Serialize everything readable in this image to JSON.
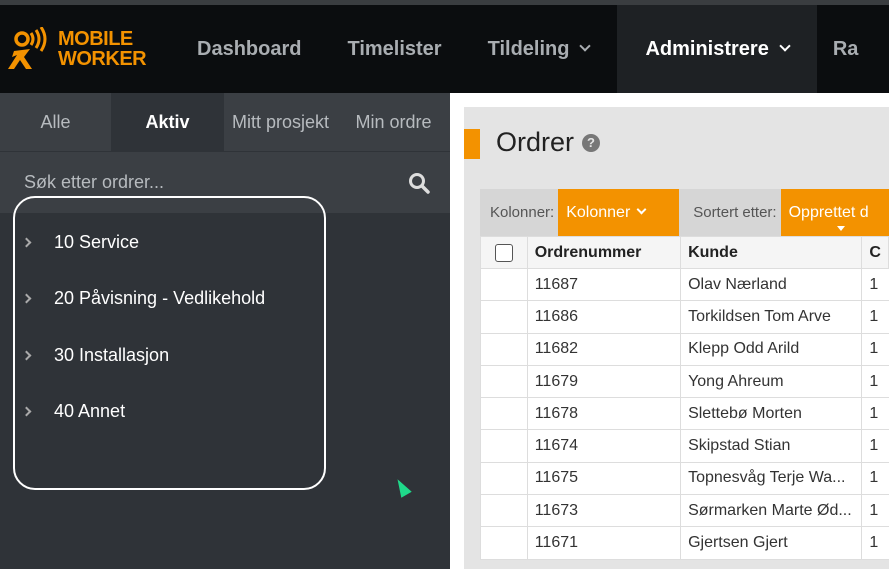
{
  "brand": {
    "line1": "MOBILE",
    "line2": "WORKER",
    "color": "#f39200"
  },
  "nav": {
    "items": [
      {
        "label": "Dashboard"
      },
      {
        "label": "Timelister"
      },
      {
        "label": "Tildeling"
      },
      {
        "label": "Administrere"
      },
      {
        "label": "Ra"
      }
    ]
  },
  "sidebar": {
    "tabs": [
      {
        "label": "Alle"
      },
      {
        "label": "Aktiv"
      },
      {
        "label": "Mitt prosjekt"
      },
      {
        "label": "Min ordre"
      }
    ],
    "search_placeholder": "Søk etter ordrer...",
    "tree": [
      {
        "label": "10 Service"
      },
      {
        "label": "20 Påvisning - Vedlikehold"
      },
      {
        "label": "30 Installasjon"
      },
      {
        "label": "40 Annet"
      }
    ]
  },
  "main": {
    "title": "Ordrer",
    "help": "?",
    "toolbar": {
      "columns_label": "Kolonner:",
      "columns_button": "Kolonner",
      "sort_label": "Sortert etter:",
      "sort_button": "Opprettet d"
    },
    "table": {
      "headers": [
        "Ordrenummer",
        "Kunde",
        "C"
      ],
      "rows": [
        [
          "11687",
          "Olav Nærland",
          "1"
        ],
        [
          "11686",
          "Torkildsen Tom Arve",
          "1"
        ],
        [
          "11682",
          "Klepp Odd Arild",
          "1"
        ],
        [
          "11679",
          "Yong Ahreum",
          "1"
        ],
        [
          "11678",
          "Slettebø Morten",
          "1"
        ],
        [
          "11674",
          "Skipstad Stian",
          "1"
        ],
        [
          "11675",
          "Topnesvåg Terje Wa...",
          "1"
        ],
        [
          "11673",
          "Sørmarken Marte Ød...",
          "1"
        ],
        [
          "11671",
          "Gjertsen Gjert",
          "1"
        ]
      ]
    }
  }
}
